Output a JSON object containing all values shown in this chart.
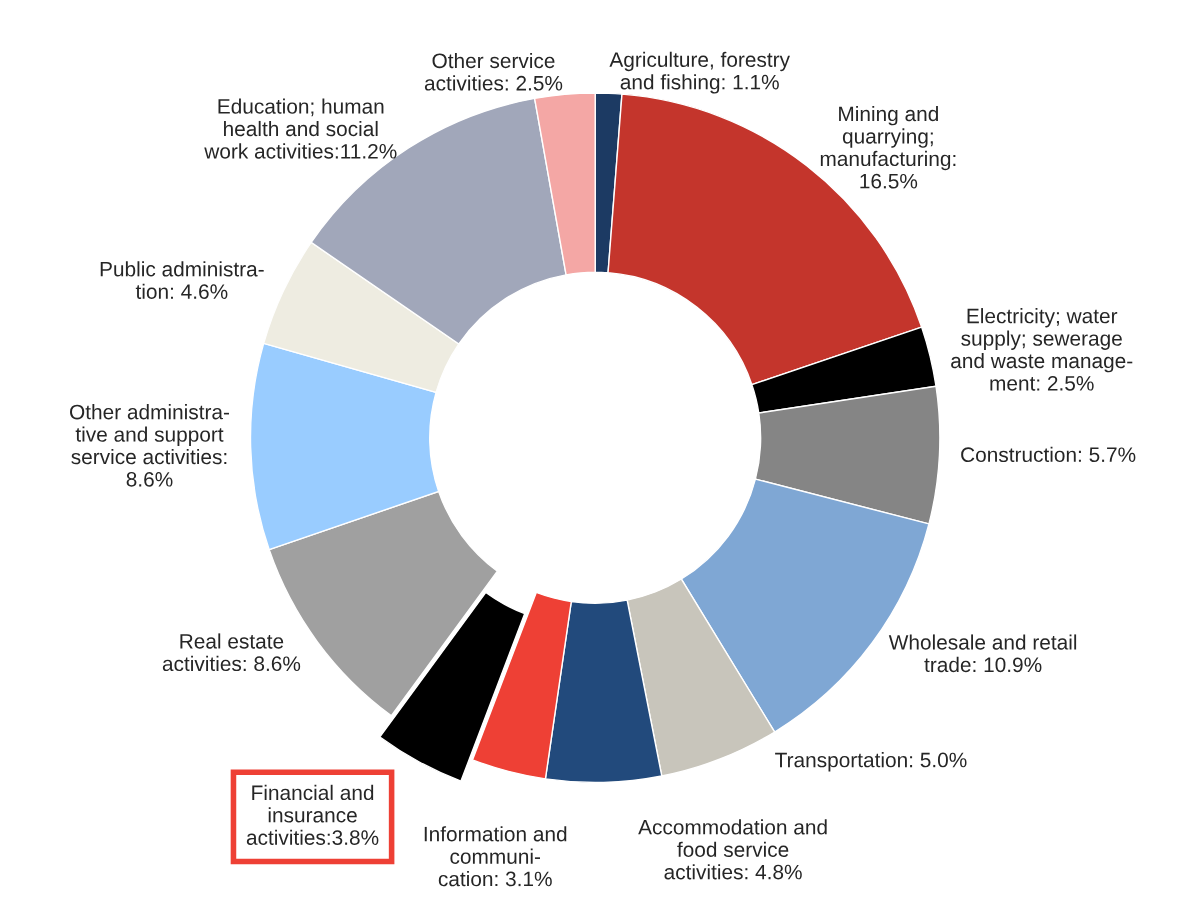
{
  "chart_data": {
    "type": "donut",
    "categories": [
      "Agriculture, forestry\nand fishing: 1.1%",
      "Mining and\nquarrying;\nmanufacturing:\n16.5%",
      "Electricity; water\nsupply; sewerage\nand waste manage-\nment: 2.5%",
      "Construction: 5.7%",
      "Wholesale and retail\ntrade: 10.9%",
      "Transportation: 5.0%",
      "Accommodation and\nfood service\nactivities: 4.8%",
      "Information and\ncommuni-\ncation: 3.1%",
      "Financial and\ninsurance\nactivities:3.8%",
      "Real estate\nactivities: 8.6%",
      "Other administra-\ntive and support\nservice activities:\n8.6%",
      "Public administra-\ntion: 4.6%",
      "Education; human\nhealth and social\nwork activities:11.2%",
      "Other service\nactivities: 2.5%"
    ],
    "values": [
      1.1,
      16.5,
      2.5,
      5.7,
      10.9,
      5.0,
      4.8,
      3.1,
      3.8,
      8.6,
      8.6,
      4.6,
      11.2,
      2.5
    ],
    "colors": [
      "#1c3a63",
      "#c4352c",
      "#000000",
      "#858585",
      "#7fa7d4",
      "#c8c5bb",
      "#224a7c",
      "#ee4035",
      "#000000",
      "#a0a0a0",
      "#99ccff",
      "#eeece1",
      "#a1a7ba",
      "#f4a7a5"
    ]
  }
}
